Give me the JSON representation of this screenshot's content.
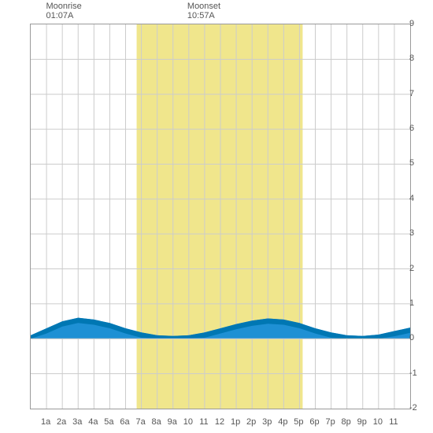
{
  "header": {
    "moonrise": {
      "label": "Moonrise",
      "time": "01:07A",
      "x_hour": 1.12
    },
    "moonset": {
      "label": "Moonset",
      "time": "10:57A",
      "x_hour": 10.95
    }
  },
  "chart": {
    "type": "area",
    "background_color": "#ffffff",
    "grid_color": "#cccccc",
    "border_color": "#9a9a9a",
    "text_color": "#555555",
    "label_fontsize": 11,
    "daylight_band": {
      "start_hour": 6.7,
      "end_hour": 17.2,
      "color": "#f0e68c"
    },
    "x": {
      "min": 0,
      "max": 24,
      "tick_step": 1,
      "labels": [
        "1a",
        "2a",
        "3a",
        "4a",
        "5a",
        "6a",
        "7a",
        "8a",
        "9a",
        "10",
        "11",
        "12",
        "1p",
        "2p",
        "3p",
        "4p",
        "5p",
        "6p",
        "7p",
        "8p",
        "9p",
        "10",
        "11"
      ]
    },
    "y": {
      "min": -2,
      "max": 9,
      "tick_step": 1,
      "labels": [
        "-2",
        "-1",
        "0",
        "1",
        "2",
        "3",
        "4",
        "5",
        "6",
        "7",
        "8",
        "9"
      ]
    },
    "tide": {
      "dark_color": "#0077b3",
      "light_color": "#1e90d4",
      "dark_band_height": 0.15,
      "values": [
        0.1,
        0.3,
        0.5,
        0.6,
        0.55,
        0.45,
        0.3,
        0.18,
        0.1,
        0.08,
        0.1,
        0.18,
        0.3,
        0.42,
        0.52,
        0.58,
        0.55,
        0.45,
        0.3,
        0.18,
        0.1,
        0.08,
        0.12,
        0.22,
        0.32
      ]
    }
  }
}
